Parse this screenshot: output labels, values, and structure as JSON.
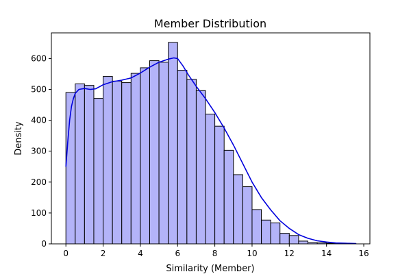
{
  "chart_data": {
    "type": "bar",
    "title": "Member Distribution",
    "xlabel": "Similarity (Member)",
    "ylabel": "Density",
    "xlim": [
      -0.78,
      16.33
    ],
    "ylim": [
      0,
      683
    ],
    "x_ticks": [
      0,
      2,
      4,
      6,
      8,
      10,
      12,
      14,
      16
    ],
    "y_ticks": [
      0,
      100,
      200,
      300,
      400,
      500,
      600
    ],
    "grid": false,
    "bin_start": 0,
    "bin_width": 0.5,
    "counts": [
      490,
      518,
      513,
      471,
      542,
      527,
      522,
      552,
      570,
      593,
      588,
      652,
      562,
      533,
      496,
      420,
      381,
      303,
      224,
      185,
      111,
      77,
      68,
      34,
      27,
      9,
      4,
      3,
      2,
      1,
      1
    ],
    "bar_color": "#b3b3f8",
    "bar_edge_color": "#000000",
    "kde_color": "#0000dd",
    "kde": {
      "x": [
        0,
        0.1,
        0.2,
        0.3,
        0.4,
        0.5,
        0.7,
        1.0,
        1.3,
        1.6,
        2.0,
        2.5,
        3.0,
        3.5,
        4.0,
        4.5,
        5.0,
        5.5,
        5.8,
        6.0,
        6.3,
        6.6,
        7.0,
        7.5,
        8.0,
        8.5,
        9.0,
        9.5,
        10.0,
        10.5,
        11.0,
        11.5,
        12.0,
        12.5,
        13.0,
        13.5,
        14.0,
        14.5,
        15.0,
        15.6
      ],
      "y": [
        250,
        330,
        400,
        445,
        470,
        487,
        500,
        503,
        500,
        502,
        515,
        525,
        530,
        537,
        553,
        572,
        588,
        598,
        602,
        600,
        575,
        545,
        510,
        470,
        425,
        375,
        320,
        260,
        200,
        150,
        110,
        75,
        50,
        30,
        18,
        10,
        6,
        3,
        2,
        1
      ]
    }
  }
}
